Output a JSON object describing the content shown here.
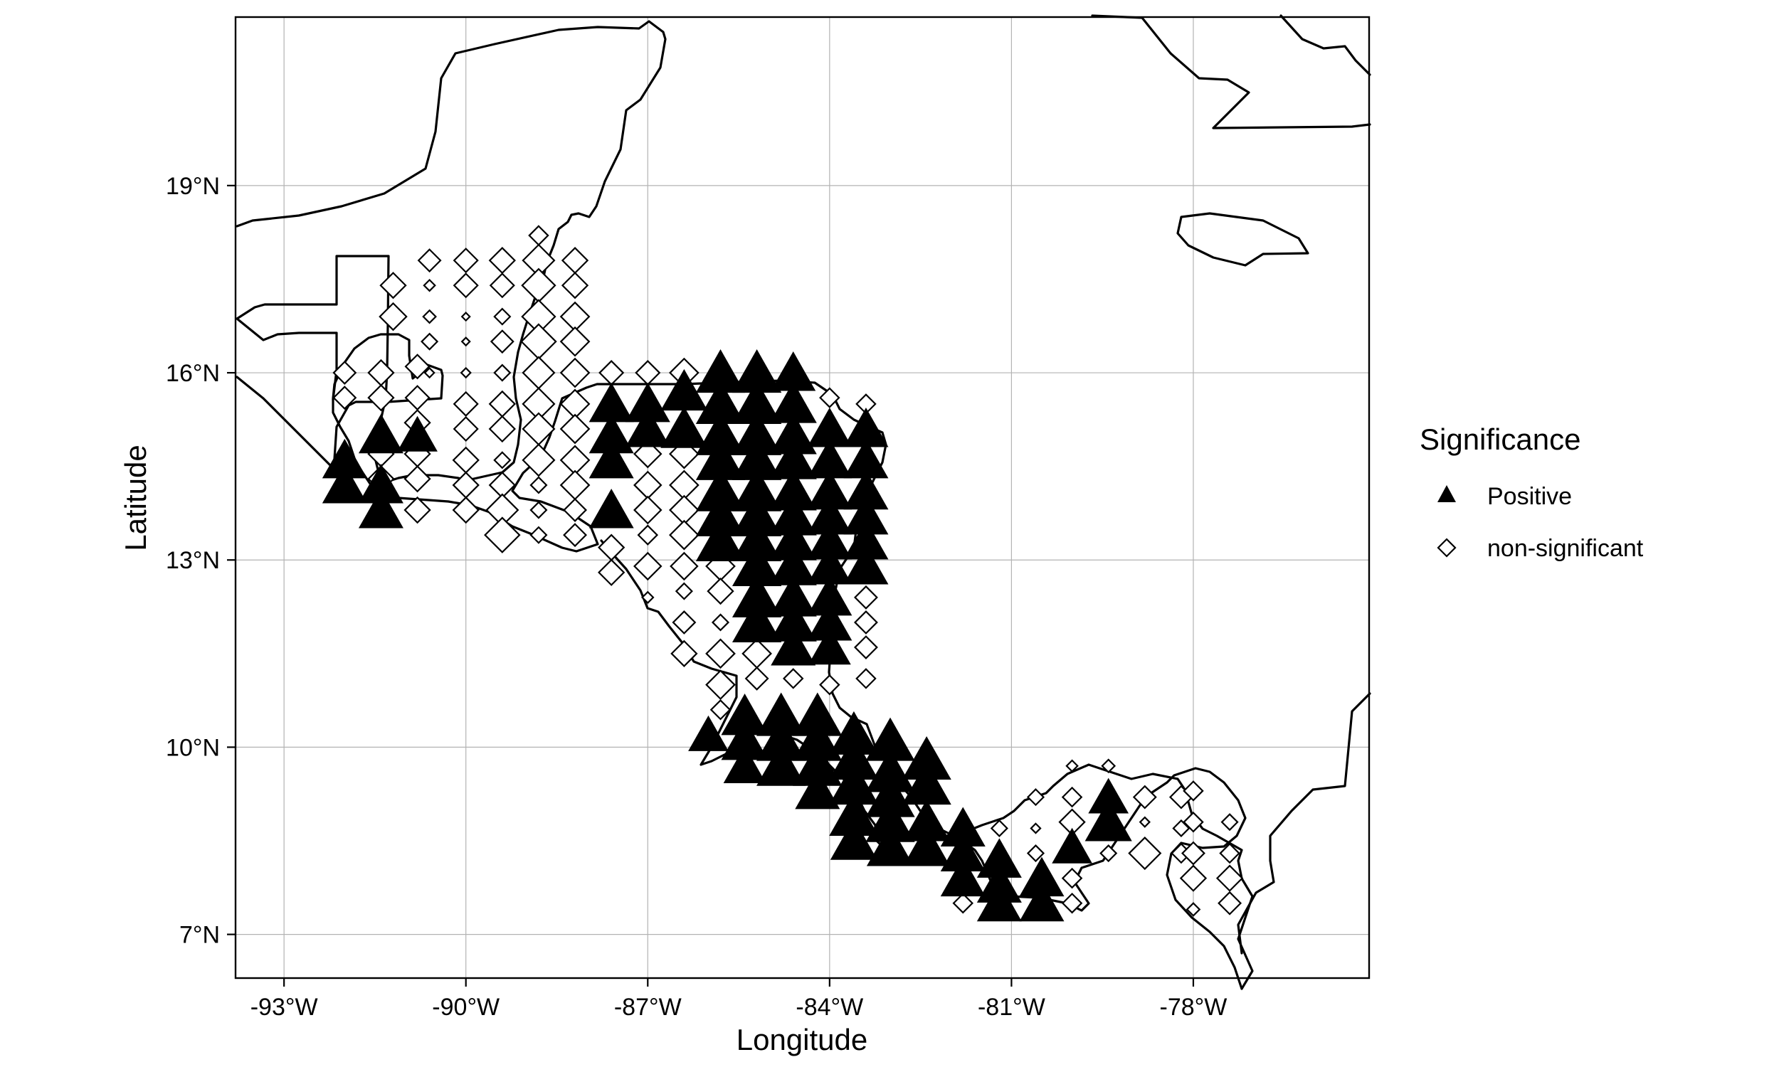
{
  "chart_data": {
    "type": "scatter",
    "title": "",
    "xlabel": "Longitude",
    "ylabel": "Latitude",
    "xlim": [
      -93.8,
      -75.1
    ],
    "ylim": [
      6.3,
      21.7
    ],
    "x_ticks": [
      {
        "value": -93,
        "label": "-93°W"
      },
      {
        "value": -90,
        "label": "-90°W"
      },
      {
        "value": -87,
        "label": "-87°W"
      },
      {
        "value": -84,
        "label": "-84°W"
      },
      {
        "value": -81,
        "label": "-81°W"
      },
      {
        "value": -78,
        "label": "-78°W"
      }
    ],
    "y_ticks": [
      {
        "value": 19,
        "label": "19°N"
      },
      {
        "value": 16,
        "label": "16°N"
      },
      {
        "value": 13,
        "label": "13°N"
      },
      {
        "value": 10,
        "label": "10°N"
      },
      {
        "value": 7,
        "label": "7°N"
      }
    ],
    "grid": true,
    "legend": {
      "title": "Significance",
      "position": "right",
      "entries": [
        {
          "label": "Positive",
          "symbol": "filled-triangle"
        },
        {
          "label": "non-significant",
          "symbol": "open-diamond"
        }
      ]
    },
    "coastline_color": "#000000",
    "grid_color": "#b3b3b3",
    "series": [
      {
        "name": "Positive",
        "symbol": "filled-triangle",
        "color": "#000000",
        "note": "point = [longitude, latitude, relative magnitude]",
        "points": [
          [
            -92.0,
            14.6,
            1.0
          ],
          [
            -92.0,
            14.2,
            1.0
          ],
          [
            -91.4,
            15.0,
            1.0
          ],
          [
            -91.4,
            14.2,
            1.0
          ],
          [
            -91.4,
            13.8,
            1.0
          ],
          [
            -90.8,
            15.0,
            0.9
          ],
          [
            -87.6,
            15.5,
            1.0
          ],
          [
            -87.6,
            15.0,
            1.0
          ],
          [
            -87.6,
            14.6,
            1.0
          ],
          [
            -87.6,
            13.8,
            1.0
          ],
          [
            -87.0,
            15.5,
            1.0
          ],
          [
            -87.0,
            15.1,
            1.0
          ],
          [
            -86.4,
            15.7,
            1.05
          ],
          [
            -86.4,
            15.1,
            1.05
          ],
          [
            -85.8,
            16.0,
            1.1
          ],
          [
            -85.8,
            15.5,
            1.1
          ],
          [
            -85.8,
            15.0,
            1.1
          ],
          [
            -85.8,
            14.6,
            1.1
          ],
          [
            -85.8,
            14.1,
            1.1
          ],
          [
            -85.8,
            13.7,
            1.1
          ],
          [
            -85.8,
            13.3,
            1.1
          ],
          [
            -85.2,
            16.0,
            1.1
          ],
          [
            -85.2,
            15.5,
            1.1
          ],
          [
            -85.2,
            15.0,
            1.1
          ],
          [
            -85.2,
            14.6,
            1.1
          ],
          [
            -85.2,
            14.1,
            1.1
          ],
          [
            -85.2,
            13.7,
            1.1
          ],
          [
            -85.2,
            13.3,
            1.1
          ],
          [
            -85.2,
            12.9,
            1.1
          ],
          [
            -85.2,
            12.4,
            1.1
          ],
          [
            -85.2,
            12.0,
            1.1
          ],
          [
            -84.6,
            16.0,
            1.0
          ],
          [
            -84.6,
            15.5,
            1.05
          ],
          [
            -84.6,
            15.0,
            1.05
          ],
          [
            -84.6,
            14.6,
            1.05
          ],
          [
            -84.6,
            14.1,
            1.05
          ],
          [
            -84.6,
            13.7,
            1.05
          ],
          [
            -84.6,
            13.3,
            1.05
          ],
          [
            -84.6,
            12.9,
            1.05
          ],
          [
            -84.6,
            12.4,
            1.05
          ],
          [
            -84.6,
            12.0,
            1.05
          ],
          [
            -84.6,
            11.6,
            1.0
          ],
          [
            -84.0,
            15.1,
            1.0
          ],
          [
            -84.0,
            14.6,
            1.0
          ],
          [
            -84.0,
            14.1,
            1.0
          ],
          [
            -84.0,
            13.7,
            1.0
          ],
          [
            -84.0,
            13.3,
            1.0
          ],
          [
            -84.0,
            12.9,
            1.0
          ],
          [
            -84.0,
            12.4,
            1.0
          ],
          [
            -84.0,
            12.0,
            1.0
          ],
          [
            -84.0,
            11.6,
            0.95
          ],
          [
            -83.4,
            15.1,
            1.0
          ],
          [
            -83.4,
            14.6,
            1.0
          ],
          [
            -83.4,
            14.1,
            1.0
          ],
          [
            -83.4,
            13.7,
            1.0
          ],
          [
            -83.4,
            13.3,
            1.0
          ],
          [
            -83.4,
            12.9,
            1.0
          ],
          [
            -86.0,
            10.2,
            0.9
          ],
          [
            -85.4,
            10.5,
            1.05
          ],
          [
            -85.4,
            10.1,
            1.05
          ],
          [
            -85.4,
            9.7,
            0.95
          ],
          [
            -84.8,
            10.5,
            1.1
          ],
          [
            -84.8,
            10.1,
            1.1
          ],
          [
            -84.8,
            9.7,
            1.1
          ],
          [
            -84.2,
            10.5,
            1.1
          ],
          [
            -84.2,
            10.1,
            1.1
          ],
          [
            -84.2,
            9.7,
            1.1
          ],
          [
            -84.2,
            9.3,
            1.0
          ],
          [
            -83.6,
            10.2,
            1.1
          ],
          [
            -83.6,
            9.8,
            1.1
          ],
          [
            -83.6,
            9.4,
            1.1
          ],
          [
            -83.6,
            8.9,
            1.1
          ],
          [
            -83.6,
            8.5,
            1.05
          ],
          [
            -83.0,
            10.1,
            1.1
          ],
          [
            -83.0,
            9.6,
            1.1
          ],
          [
            -83.0,
            9.2,
            1.1
          ],
          [
            -83.0,
            8.8,
            1.1
          ],
          [
            -83.0,
            8.4,
            1.05
          ],
          [
            -82.4,
            9.8,
            1.1
          ],
          [
            -82.4,
            9.4,
            1.1
          ],
          [
            -82.4,
            8.8,
            1.05
          ],
          [
            -82.4,
            8.4,
            1.05
          ],
          [
            -81.8,
            8.7,
            1.0
          ],
          [
            -81.8,
            8.3,
            1.0
          ],
          [
            -81.8,
            7.9,
            1.0
          ],
          [
            -81.2,
            8.2,
            1.0
          ],
          [
            -81.2,
            7.8,
            1.0
          ],
          [
            -81.2,
            7.5,
            1.0
          ],
          [
            -80.5,
            7.9,
            1.0
          ],
          [
            -80.5,
            7.5,
            1.0
          ],
          [
            -80.0,
            8.4,
            0.9
          ],
          [
            -79.4,
            9.2,
            0.9
          ],
          [
            -79.4,
            8.8,
            1.05
          ]
        ]
      },
      {
        "name": "non-significant",
        "symbol": "open-diamond",
        "color": "#000000",
        "note": "point = [longitude, latitude, relative magnitude]",
        "points": [
          [
            -91.2,
            17.4,
            0.8
          ],
          [
            -91.2,
            16.9,
            0.85
          ],
          [
            -90.6,
            17.8,
            0.7
          ],
          [
            -90.6,
            17.4,
            0.35
          ],
          [
            -90.6,
            16.9,
            0.4
          ],
          [
            -90.6,
            16.5,
            0.5
          ],
          [
            -90.6,
            16.0,
            0.3
          ],
          [
            -90.0,
            17.8,
            0.75
          ],
          [
            -90.0,
            17.4,
            0.75
          ],
          [
            -90.0,
            16.9,
            0.25
          ],
          [
            -90.0,
            16.5,
            0.25
          ],
          [
            -90.0,
            16.0,
            0.3
          ],
          [
            -90.0,
            15.5,
            0.75
          ],
          [
            -90.0,
            15.1,
            0.75
          ],
          [
            -90.0,
            14.6,
            0.8
          ],
          [
            -90.0,
            14.2,
            0.8
          ],
          [
            -90.0,
            13.8,
            0.8
          ],
          [
            -89.4,
            17.8,
            0.8
          ],
          [
            -89.4,
            17.4,
            0.75
          ],
          [
            -89.4,
            16.9,
            0.5
          ],
          [
            -89.4,
            16.5,
            0.7
          ],
          [
            -89.4,
            16.0,
            0.5
          ],
          [
            -89.4,
            15.5,
            0.8
          ],
          [
            -89.4,
            15.1,
            0.8
          ],
          [
            -89.4,
            14.6,
            0.5
          ],
          [
            -89.4,
            14.2,
            0.8
          ],
          [
            -89.4,
            13.8,
            1.0
          ],
          [
            -89.4,
            13.4,
            1.1
          ],
          [
            -88.8,
            18.2,
            0.6
          ],
          [
            -88.8,
            17.8,
            1.0
          ],
          [
            -88.8,
            17.4,
            1.05
          ],
          [
            -88.8,
            16.9,
            1.05
          ],
          [
            -88.8,
            16.5,
            1.1
          ],
          [
            -88.8,
            16.0,
            1.0
          ],
          [
            -88.8,
            15.5,
            1.0
          ],
          [
            -88.8,
            15.1,
            1.0
          ],
          [
            -88.8,
            14.6,
            1.0
          ],
          [
            -88.8,
            14.2,
            0.5
          ],
          [
            -88.8,
            13.8,
            0.5
          ],
          [
            -88.8,
            13.4,
            0.5
          ],
          [
            -88.2,
            17.8,
            0.8
          ],
          [
            -88.2,
            17.4,
            0.8
          ],
          [
            -88.2,
            16.9,
            0.9
          ],
          [
            -88.2,
            16.5,
            0.9
          ],
          [
            -88.2,
            16.0,
            0.9
          ],
          [
            -88.2,
            15.5,
            0.9
          ],
          [
            -88.2,
            15.1,
            0.9
          ],
          [
            -88.2,
            14.6,
            0.9
          ],
          [
            -88.2,
            14.2,
            0.9
          ],
          [
            -88.2,
            13.8,
            0.7
          ],
          [
            -88.2,
            13.4,
            0.7
          ],
          [
            -92.0,
            16.0,
            0.7
          ],
          [
            -92.0,
            15.6,
            0.7
          ],
          [
            -91.4,
            16.0,
            0.8
          ],
          [
            -91.4,
            15.6,
            0.8
          ],
          [
            -90.8,
            16.1,
            0.75
          ],
          [
            -90.8,
            15.6,
            0.75
          ],
          [
            -90.8,
            15.2,
            0.8
          ],
          [
            -90.8,
            14.7,
            0.8
          ],
          [
            -90.8,
            14.3,
            0.8
          ],
          [
            -90.8,
            13.8,
            0.8
          ],
          [
            -91.4,
            14.7,
            0.8
          ],
          [
            -91.4,
            14.3,
            0.8
          ],
          [
            -87.6,
            16.0,
            0.75
          ],
          [
            -87.0,
            16.0,
            0.75
          ],
          [
            -87.0,
            14.7,
            0.85
          ],
          [
            -87.0,
            14.2,
            0.85
          ],
          [
            -87.0,
            13.8,
            0.85
          ],
          [
            -87.0,
            13.4,
            0.6
          ],
          [
            -87.0,
            12.9,
            0.85
          ],
          [
            -86.4,
            16.0,
            0.9
          ],
          [
            -86.4,
            14.7,
            0.9
          ],
          [
            -86.4,
            14.2,
            0.9
          ],
          [
            -86.4,
            13.8,
            0.9
          ],
          [
            -86.4,
            13.4,
            0.9
          ],
          [
            -86.4,
            12.9,
            0.85
          ],
          [
            -86.4,
            12.5,
            0.5
          ],
          [
            -86.4,
            12.0,
            0.7
          ],
          [
            -86.4,
            11.5,
            0.8
          ],
          [
            -85.8,
            12.9,
            0.9
          ],
          [
            -85.8,
            12.5,
            0.8
          ],
          [
            -85.8,
            12.0,
            0.5
          ],
          [
            -85.8,
            11.5,
            0.9
          ],
          [
            -85.8,
            11.0,
            0.9
          ],
          [
            -85.8,
            10.6,
            0.6
          ],
          [
            -85.2,
            11.5,
            0.9
          ],
          [
            -85.2,
            11.1,
            0.7
          ],
          [
            -84.6,
            11.1,
            0.6
          ],
          [
            -84.0,
            11.0,
            0.6
          ],
          [
            -83.4,
            12.4,
            0.7
          ],
          [
            -83.4,
            12.0,
            0.7
          ],
          [
            -83.4,
            11.6,
            0.7
          ],
          [
            -83.4,
            11.1,
            0.6
          ],
          [
            -83.4,
            15.5,
            0.6
          ],
          [
            -84.0,
            15.6,
            0.6
          ],
          [
            -87.6,
            13.2,
            0.8
          ],
          [
            -87.6,
            12.8,
            0.8
          ],
          [
            -87.0,
            12.4,
            0.35
          ],
          [
            -81.8,
            7.5,
            0.6
          ],
          [
            -81.2,
            8.7,
            0.5
          ],
          [
            -80.6,
            9.2,
            0.5
          ],
          [
            -80.6,
            8.7,
            0.3
          ],
          [
            -80.6,
            8.3,
            0.5
          ],
          [
            -80.0,
            9.7,
            0.35
          ],
          [
            -80.0,
            9.2,
            0.6
          ],
          [
            -80.0,
            8.8,
            0.8
          ],
          [
            -80.0,
            7.9,
            0.6
          ],
          [
            -80.0,
            7.5,
            0.6
          ],
          [
            -79.4,
            9.7,
            0.4
          ],
          [
            -79.4,
            8.3,
            0.5
          ],
          [
            -78.8,
            9.2,
            0.7
          ],
          [
            -78.8,
            8.8,
            0.3
          ],
          [
            -78.8,
            8.3,
            1.0
          ],
          [
            -78.2,
            9.2,
            0.7
          ],
          [
            -78.2,
            8.7,
            0.5
          ],
          [
            -78.2,
            8.3,
            0.6
          ],
          [
            -78.0,
            9.3,
            0.6
          ],
          [
            -78.0,
            8.8,
            0.6
          ],
          [
            -78.0,
            8.3,
            0.7
          ],
          [
            -78.0,
            7.9,
            0.8
          ],
          [
            -78.0,
            7.4,
            0.4
          ],
          [
            -77.4,
            8.8,
            0.5
          ],
          [
            -77.4,
            8.3,
            0.6
          ],
          [
            -77.4,
            7.9,
            0.8
          ],
          [
            -77.4,
            7.5,
            0.7
          ]
        ]
      }
    ]
  }
}
